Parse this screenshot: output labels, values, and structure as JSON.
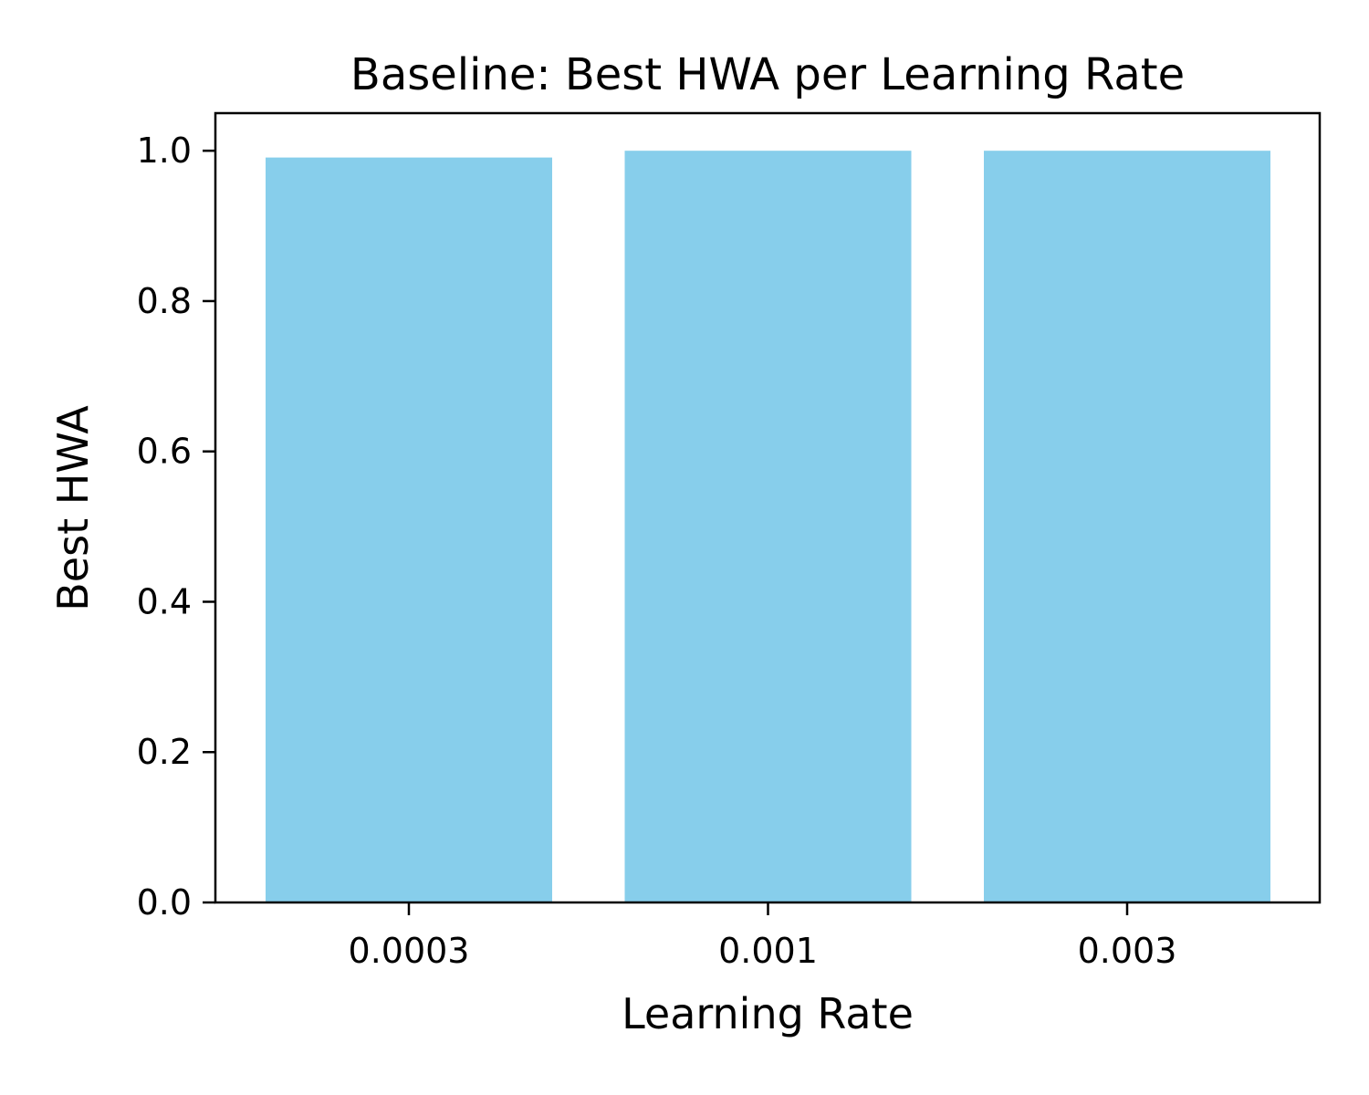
{
  "chart_data": {
    "type": "bar",
    "title": "Baseline: Best HWA per Learning Rate",
    "xlabel": "Learning Rate",
    "ylabel": "Best HWA",
    "categories": [
      "0.0003",
      "0.001",
      "0.003"
    ],
    "values": [
      0.991,
      1.0,
      1.0
    ],
    "ylim": [
      0,
      1.05
    ],
    "yticks": [
      "0.0",
      "0.2",
      "0.4",
      "0.6",
      "0.8",
      "1.0"
    ],
    "grid": false,
    "legend": "none",
    "bar_color": "#87CEEB"
  }
}
